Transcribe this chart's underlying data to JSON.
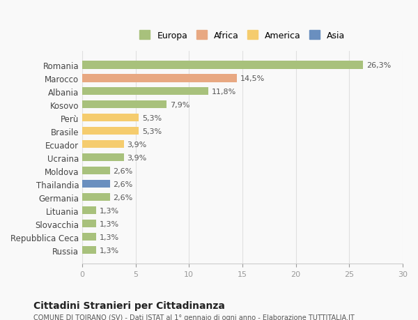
{
  "countries": [
    "Romania",
    "Marocco",
    "Albania",
    "Kosovo",
    "Perù",
    "Brasile",
    "Ecuador",
    "Ucraina",
    "Moldova",
    "Thailandia",
    "Germania",
    "Lituania",
    "Slovacchia",
    "Repubblica Ceca",
    "Russia"
  ],
  "values": [
    26.3,
    14.5,
    11.8,
    7.9,
    5.3,
    5.3,
    3.9,
    3.9,
    2.6,
    2.6,
    2.6,
    1.3,
    1.3,
    1.3,
    1.3
  ],
  "labels": [
    "26,3%",
    "14,5%",
    "11,8%",
    "7,9%",
    "5,3%",
    "5,3%",
    "3,9%",
    "3,9%",
    "2,6%",
    "2,6%",
    "2,6%",
    "1,3%",
    "1,3%",
    "1,3%",
    "1,3%"
  ],
  "continents": [
    "Europa",
    "Africa",
    "Europa",
    "Europa",
    "America",
    "America",
    "America",
    "Europa",
    "Europa",
    "Asia",
    "Europa",
    "Europa",
    "Europa",
    "Europa",
    "Europa"
  ],
  "colors": {
    "Europa": "#a8c17c",
    "Africa": "#e8a882",
    "America": "#f5cc6e",
    "Asia": "#6a8fbf"
  },
  "legend_colors": {
    "Europa": "#a8c17c",
    "Africa": "#e8a882",
    "America": "#f5cc6e",
    "Asia": "#6a8fbf"
  },
  "xlim": [
    0,
    30
  ],
  "xticks": [
    0,
    5,
    10,
    15,
    20,
    25,
    30
  ],
  "title": "Cittadini Stranieri per Cittadinanza",
  "subtitle": "COMUNE DI TOIRANO (SV) - Dati ISTAT al 1° gennaio di ogni anno - Elaborazione TUTTITALIA.IT",
  "background_color": "#f9f9f9",
  "grid_color": "#e0e0e0"
}
